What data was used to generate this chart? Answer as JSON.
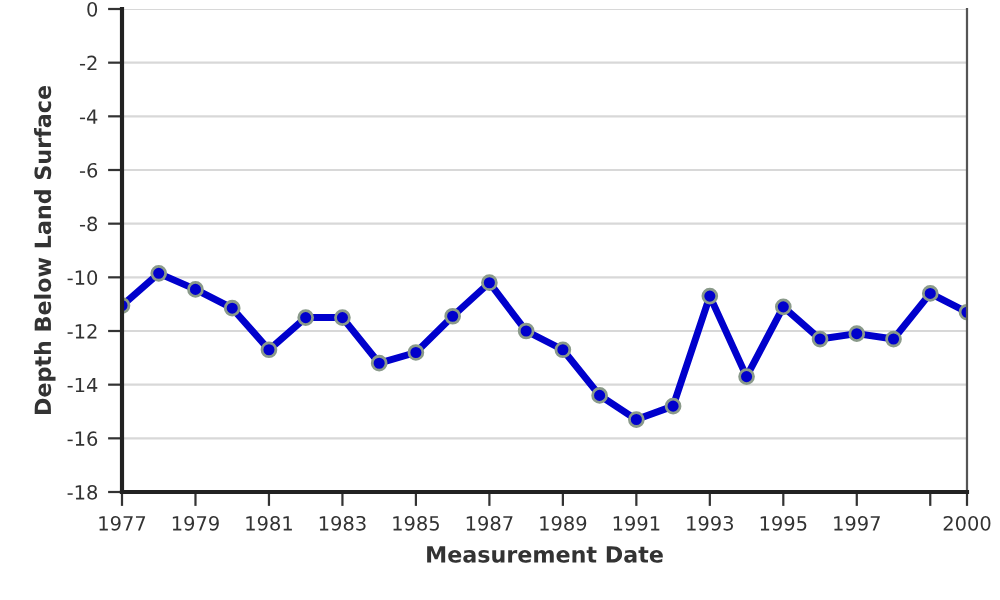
{
  "chart_data": {
    "type": "line",
    "xlabel": "Measurement Date",
    "ylabel": "Depth Below Land Surface",
    "x": [
      1977,
      1978,
      1979,
      1980,
      1981,
      1982,
      1983,
      1984,
      1985,
      1986,
      1987,
      1988,
      1989,
      1990,
      1991,
      1992,
      1993,
      1994,
      1995,
      1996,
      1997,
      1998,
      1999,
      2000
    ],
    "series": [
      {
        "color": "#0000cc",
        "values": [
          -11.05,
          -9.85,
          -10.45,
          -11.15,
          -12.7,
          -11.5,
          -11.5,
          -13.2,
          -12.8,
          -11.45,
          -10.2,
          -12.0,
          -12.7,
          -14.4,
          -15.3,
          -14.8,
          -10.7,
          -13.7,
          -11.1,
          -12.3,
          -12.1,
          -12.3,
          -10.6,
          -11.3
        ]
      }
    ],
    "xlim": [
      1977,
      2000
    ],
    "xticks": [
      1977,
      1979,
      1981,
      1983,
      1985,
      1987,
      1989,
      1991,
      1993,
      1995,
      1997,
      {
        "value": 1999,
        "label": null
      },
      2000
    ],
    "ylim": [
      -18,
      0
    ],
    "yticks": [
      -18,
      -16,
      -14,
      -12,
      -10,
      -8,
      -6,
      -4,
      -2,
      0
    ],
    "grid": "y",
    "marker": "circle",
    "line_style": "solid",
    "legend": false
  }
}
